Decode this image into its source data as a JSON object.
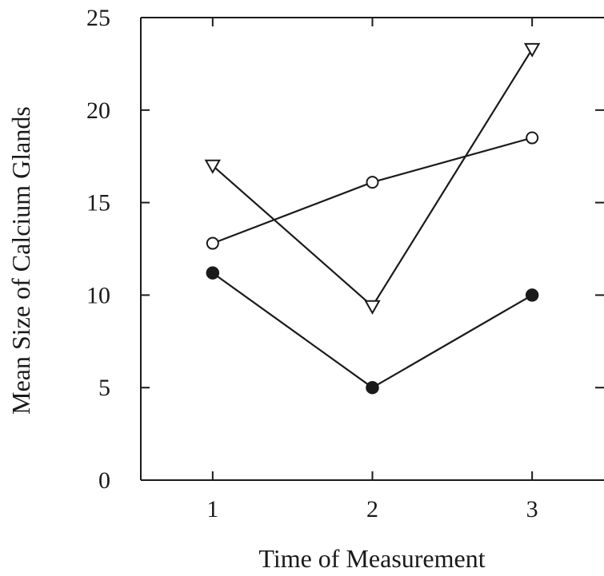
{
  "chart_data": {
    "type": "line",
    "xlabel": "Time of Measurement",
    "ylabel": "Mean Size of Calcium Glands",
    "x": [
      1,
      2,
      3
    ],
    "xticks": [
      "1",
      "2",
      "3"
    ],
    "yticks": [
      "0",
      "5",
      "10",
      "15",
      "20",
      "25"
    ],
    "xlim": [
      0.55,
      3.45
    ],
    "ylim": [
      0,
      25
    ],
    "grid": false,
    "series": [
      {
        "marker": "filled-circle",
        "values": [
          11.2,
          5.0,
          10.0
        ]
      },
      {
        "marker": "open-circle",
        "values": [
          12.8,
          16.1,
          18.5
        ]
      },
      {
        "marker": "open-triangle-down",
        "values": [
          17.0,
          9.4,
          23.3
        ]
      }
    ]
  }
}
